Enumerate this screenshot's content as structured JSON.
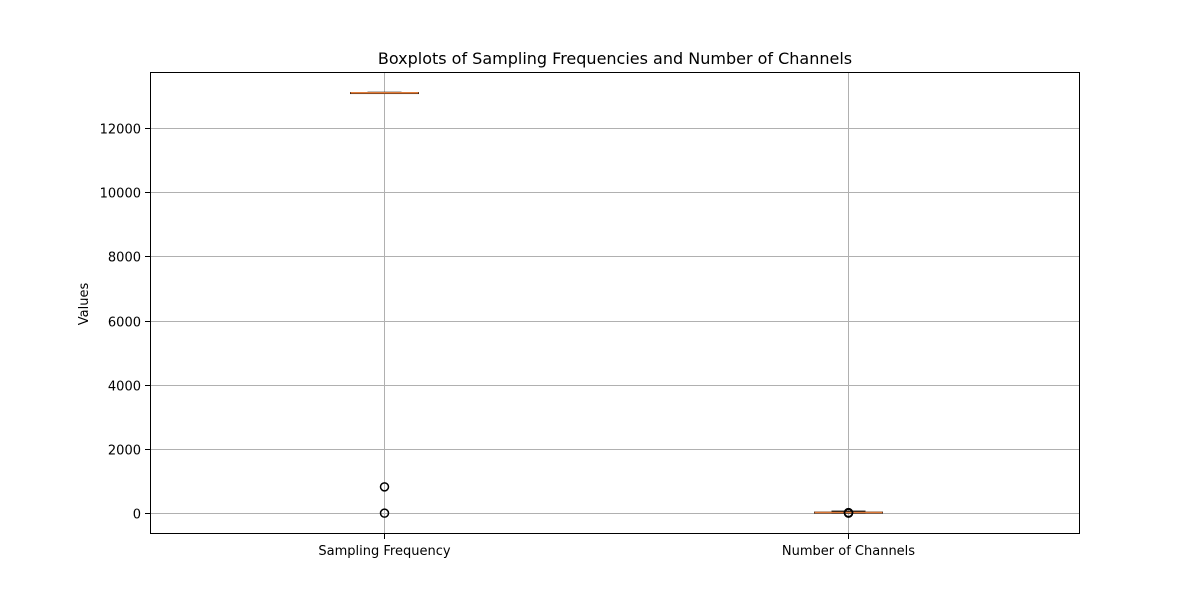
{
  "chart_data": {
    "type": "boxplot",
    "title": "Boxplots of Sampling Frequencies and Number of Channels",
    "xlabel": "",
    "ylabel": "Values",
    "categories": [
      "Sampling Frequency",
      "Number of Channels"
    ],
    "ylim": [
      -650,
      13750
    ],
    "yticks": [
      0,
      2000,
      4000,
      6000,
      8000,
      10000,
      12000
    ],
    "grid": true,
    "boxes": [
      {
        "category": "Sampling Frequency",
        "whisker_low": 13080,
        "q1": 13090,
        "median": 13100,
        "q3": 13110,
        "whisker_high": 13120,
        "outliers": [
          0,
          820
        ]
      },
      {
        "category": "Number of Channels",
        "whisker_low": 2,
        "q1": 4,
        "median": 20,
        "q3": 32,
        "whisker_high": 64,
        "outliers": [
          0,
          8,
          16
        ]
      }
    ],
    "colors": {
      "box": "#000000",
      "median": "#e07b39",
      "grid": "#b0b0b0",
      "outlier": "#000000"
    }
  }
}
